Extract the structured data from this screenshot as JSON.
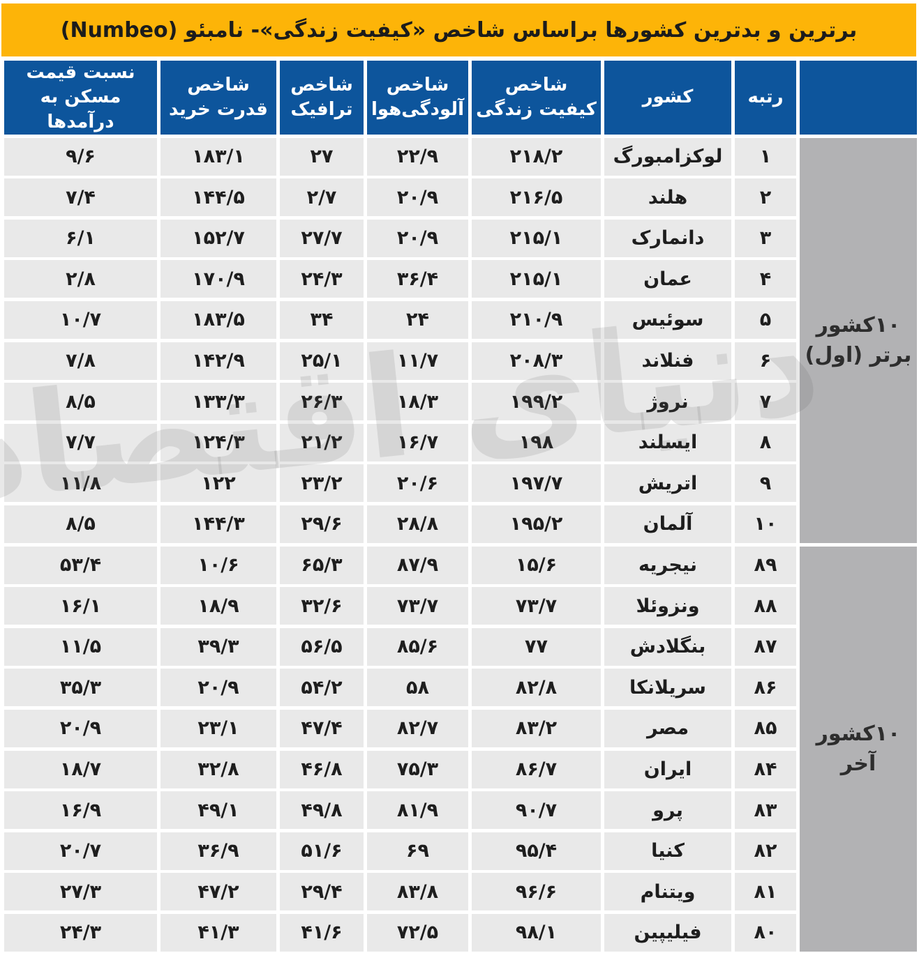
{
  "title": "برترین و بدترین کشورها براساس شاخص «کیفیت زندگی»- نامبئو (Numbeo)",
  "watermark": "دنیای اقتصاد",
  "colors": {
    "header_yellow": "#FDB408",
    "header_blue": "#0D559C",
    "cell_gray": "#E9E9E9",
    "sidebar_gray": "#B2B2B4"
  },
  "table": {
    "columns": [
      {
        "key": "rank",
        "label": "رتبه"
      },
      {
        "key": "country",
        "label": "کشور"
      },
      {
        "key": "quality_of_life_index",
        "label": "شاخص کیفیت زندگی"
      },
      {
        "key": "air_pollution_index",
        "label": "شاخص آلودگی‌هوا"
      },
      {
        "key": "traffic_index",
        "label": "شاخص ترافیک"
      },
      {
        "key": "purchasing_power_index",
        "label": "شاخص قدرت خرید"
      },
      {
        "key": "house_price_to_income",
        "label": "نسبت قیمت مسکن به درآمدها"
      }
    ],
    "groups": [
      {
        "label": "۱۰کشور برتر (اول)"
      },
      {
        "label": "۱۰کشور آخر"
      }
    ],
    "rows": [
      {
        "rank": "۱",
        "country": "لوکزامبورگ",
        "quality_of_life_index": "۲۱۸/۲",
        "air_pollution_index": "۲۲/۹",
        "traffic_index": "۲۷",
        "purchasing_power_index": "۱۸۳/۱",
        "house_price_to_income": "۹/۶"
      },
      {
        "rank": "۲",
        "country": "هلند",
        "quality_of_life_index": "۲۱۶/۵",
        "air_pollution_index": "۲۰/۹",
        "traffic_index": "۲/۷",
        "purchasing_power_index": "۱۴۴/۵",
        "house_price_to_income": "۷/۴"
      },
      {
        "rank": "۳",
        "country": "دانمارک",
        "quality_of_life_index": "۲۱۵/۱",
        "air_pollution_index": "۲۰/۹",
        "traffic_index": "۲۷/۷",
        "purchasing_power_index": "۱۵۲/۷",
        "house_price_to_income": "۶/۱"
      },
      {
        "rank": "۴",
        "country": "عمان",
        "quality_of_life_index": "۲۱۵/۱",
        "air_pollution_index": "۳۶/۴",
        "traffic_index": "۲۴/۳",
        "purchasing_power_index": "۱۷۰/۹",
        "house_price_to_income": "۲/۸"
      },
      {
        "rank": "۵",
        "country": "سوئیس",
        "quality_of_life_index": "۲۱۰/۹",
        "air_pollution_index": "۲۴",
        "traffic_index": "۳۴",
        "purchasing_power_index": "۱۸۳/۵",
        "house_price_to_income": "۱۰/۷"
      },
      {
        "rank": "۶",
        "country": "فنلاند",
        "quality_of_life_index": "۲۰۸/۳",
        "air_pollution_index": "۱۱/۷",
        "traffic_index": "۲۵/۱",
        "purchasing_power_index": "۱۴۲/۹",
        "house_price_to_income": "۷/۸"
      },
      {
        "rank": "۷",
        "country": "نروژ",
        "quality_of_life_index": "۱۹۹/۲",
        "air_pollution_index": "۱۸/۳",
        "traffic_index": "۲۶/۳",
        "purchasing_power_index": "۱۳۳/۳",
        "house_price_to_income": "۸/۵"
      },
      {
        "rank": "۸",
        "country": "ایسلند",
        "quality_of_life_index": "۱۹۸",
        "air_pollution_index": "۱۶/۷",
        "traffic_index": "۲۱/۲",
        "purchasing_power_index": "۱۲۴/۳",
        "house_price_to_income": "۷/۷"
      },
      {
        "rank": "۹",
        "country": "اتریش",
        "quality_of_life_index": "۱۹۷/۷",
        "air_pollution_index": "۲۰/۶",
        "traffic_index": "۲۳/۲",
        "purchasing_power_index": "۱۲۲",
        "house_price_to_income": "۱۱/۸"
      },
      {
        "rank": "۱۰",
        "country": "آلمان",
        "quality_of_life_index": "۱۹۵/۲",
        "air_pollution_index": "۲۸/۸",
        "traffic_index": "۲۹/۶",
        "purchasing_power_index": "۱۴۴/۳",
        "house_price_to_income": "۸/۵"
      },
      {
        "rank": "۸۹",
        "country": "نیجریه",
        "quality_of_life_index": "۱۵/۶",
        "air_pollution_index": "۸۷/۹",
        "traffic_index": "۶۵/۳",
        "purchasing_power_index": "۱۰/۶",
        "house_price_to_income": "۵۳/۴"
      },
      {
        "rank": "۸۸",
        "country": "ونزوئلا",
        "quality_of_life_index": "۷۳/۷",
        "air_pollution_index": "۷۳/۷",
        "traffic_index": "۳۲/۶",
        "purchasing_power_index": "۱۸/۹",
        "house_price_to_income": "۱۶/۱"
      },
      {
        "rank": "۸۷",
        "country": "بنگلادش",
        "quality_of_life_index": "۷۷",
        "air_pollution_index": "۸۵/۶",
        "traffic_index": "۵۶/۵",
        "purchasing_power_index": "۳۹/۳",
        "house_price_to_income": "۱۱/۵"
      },
      {
        "rank": "۸۶",
        "country": "سریلانکا",
        "quality_of_life_index": "۸۲/۸",
        "air_pollution_index": "۵۸",
        "traffic_index": "۵۴/۲",
        "purchasing_power_index": "۲۰/۹",
        "house_price_to_income": "۳۵/۳"
      },
      {
        "rank": "۸۵",
        "country": "مصر",
        "quality_of_life_index": "۸۳/۲",
        "air_pollution_index": "۸۲/۷",
        "traffic_index": "۴۷/۴",
        "purchasing_power_index": "۲۳/۱",
        "house_price_to_income": "۲۰/۹"
      },
      {
        "rank": "۸۴",
        "country": "ایران",
        "quality_of_life_index": "۸۶/۷",
        "air_pollution_index": "۷۵/۳",
        "traffic_index": "۴۶/۸",
        "purchasing_power_index": "۳۲/۸",
        "house_price_to_income": "۱۸/۷"
      },
      {
        "rank": "۸۳",
        "country": "پرو",
        "quality_of_life_index": "۹۰/۷",
        "air_pollution_index": "۸۱/۹",
        "traffic_index": "۴۹/۸",
        "purchasing_power_index": "۴۹/۱",
        "house_price_to_income": "۱۶/۹"
      },
      {
        "rank": "۸۲",
        "country": "کنیا",
        "quality_of_life_index": "۹۵/۴",
        "air_pollution_index": "۶۹",
        "traffic_index": "۵۱/۶",
        "purchasing_power_index": "۳۶/۹",
        "house_price_to_income": "۲۰/۷"
      },
      {
        "rank": "۸۱",
        "country": "ویتنام",
        "quality_of_life_index": "۹۶/۶",
        "air_pollution_index": "۸۳/۸",
        "traffic_index": "۲۹/۴",
        "purchasing_power_index": "۴۷/۲",
        "house_price_to_income": "۲۷/۳"
      },
      {
        "rank": "۸۰",
        "country": "فیلیپین",
        "quality_of_life_index": "۹۸/۱",
        "air_pollution_index": "۷۲/۵",
        "traffic_index": "۴۱/۶",
        "purchasing_power_index": "۴۱/۳",
        "house_price_to_income": "۲۴/۳"
      }
    ]
  },
  "chart_data": {
    "type": "table",
    "title": "برترین و بدترین کشورها براساس شاخص «کیفیت زندگی»- نامبئو (Numbeo)",
    "columns": [
      "رتبه",
      "کشور",
      "شاخص کیفیت زندگی",
      "شاخص آلودگی‌هوا",
      "شاخص ترافیک",
      "شاخص قدرت خرید",
      "نسبت قیمت مسکن به درآمدها"
    ],
    "groups": [
      {
        "label": "۱۰کشور برتر (اول)",
        "row_indices": [
          0,
          9
        ]
      },
      {
        "label": "۱۰کشور آخر",
        "row_indices": [
          10,
          19
        ]
      }
    ],
    "rows": [
      [
        1,
        "لوکزامبورگ",
        218.2,
        22.9,
        27,
        183.1,
        9.6
      ],
      [
        2,
        "هلند",
        216.5,
        20.9,
        2.7,
        144.5,
        7.4
      ],
      [
        3,
        "دانمارک",
        215.1,
        20.9,
        27.7,
        152.7,
        6.1
      ],
      [
        4,
        "عمان",
        215.1,
        36.4,
        24.3,
        170.9,
        2.8
      ],
      [
        5,
        "سوئیس",
        210.9,
        24,
        34,
        183.5,
        10.7
      ],
      [
        6,
        "فنلاند",
        208.3,
        11.7,
        25.1,
        142.9,
        7.8
      ],
      [
        7,
        "نروژ",
        199.2,
        18.3,
        26.3,
        133.3,
        8.5
      ],
      [
        8,
        "ایسلند",
        198,
        16.7,
        21.2,
        124.3,
        7.7
      ],
      [
        9,
        "اتریش",
        197.7,
        20.6,
        23.2,
        122,
        11.8
      ],
      [
        10,
        "آلمان",
        195.2,
        28.8,
        29.6,
        144.3,
        8.5
      ],
      [
        89,
        "نیجریه",
        15.6,
        87.9,
        65.3,
        10.6,
        53.4
      ],
      [
        88,
        "ونزوئلا",
        73.7,
        73.7,
        32.6,
        18.9,
        16.1
      ],
      [
        87,
        "بنگلادش",
        77,
        85.6,
        56.5,
        39.3,
        11.5
      ],
      [
        86,
        "سریلانکا",
        82.8,
        58,
        54.2,
        20.9,
        35.3
      ],
      [
        85,
        "مصر",
        83.2,
        82.7,
        47.4,
        23.1,
        20.9
      ],
      [
        84,
        "ایران",
        86.7,
        75.3,
        46.8,
        32.8,
        18.7
      ],
      [
        83,
        "پرو",
        90.7,
        81.9,
        49.8,
        49.1,
        16.9
      ],
      [
        82,
        "کنیا",
        95.4,
        69,
        51.6,
        36.9,
        20.7
      ],
      [
        81,
        "ویتنام",
        96.6,
        83.8,
        29.4,
        47.2,
        27.3
      ],
      [
        80,
        "فیلیپین",
        98.1,
        72.5,
        41.6,
        41.3,
        24.3
      ]
    ]
  }
}
